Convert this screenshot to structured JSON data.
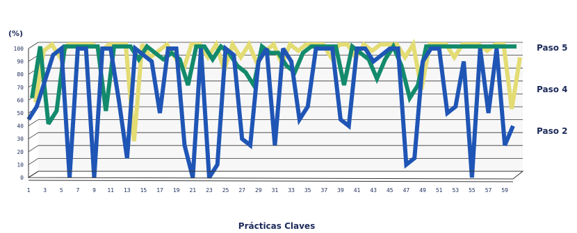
{
  "chart_data": {
    "type": "line",
    "title": "",
    "unit_label": "(%)",
    "xlabel": "Prácticas Claves",
    "ylabel": "",
    "ylim": [
      0,
      100
    ],
    "y_ticks": [
      0,
      10,
      20,
      30,
      40,
      50,
      60,
      70,
      80,
      90,
      100
    ],
    "x_tick_labels": [
      "1",
      "3",
      "5",
      "7",
      "9",
      "11",
      "13",
      "15",
      "17",
      "19",
      "21",
      "23",
      "25",
      "27",
      "29",
      "31",
      "33",
      "35",
      "37",
      "39",
      "41",
      "43",
      "45",
      "47",
      "49",
      "51",
      "53",
      "55",
      "57",
      "59"
    ],
    "grid": true,
    "legend_position": "right",
    "x": [
      1,
      2,
      3,
      4,
      5,
      6,
      7,
      8,
      9,
      10,
      11,
      12,
      13,
      14,
      15,
      16,
      17,
      18,
      19,
      20,
      21,
      22,
      23,
      24,
      25,
      26,
      27,
      28,
      29,
      30,
      31,
      32,
      33,
      34,
      35,
      36,
      37,
      38,
      39,
      40,
      41,
      42,
      43,
      44,
      45,
      46,
      47,
      48,
      49,
      50,
      51,
      52,
      53,
      54,
      55,
      56,
      57,
      58,
      59,
      60
    ],
    "series": [
      {
        "name": "Paso 5",
        "color": "#e3dc73",
        "values": [
          55,
          95,
          100,
          90,
          100,
          100,
          100,
          100,
          95,
          100,
          100,
          100,
          25,
          100,
          90,
          95,
          100,
          90,
          80,
          100,
          100,
          90,
          100,
          80,
          100,
          90,
          100,
          85,
          95,
          100,
          85,
          100,
          95,
          100,
          100,
          100,
          90,
          100,
          100,
          90,
          100,
          95,
          100,
          100,
          100,
          90,
          100,
          65,
          100,
          100,
          100,
          90,
          100,
          100,
          100,
          95,
          100,
          100,
          50,
          90
        ]
      },
      {
        "name": "Paso 4",
        "color": "#138a6c",
        "values": [
          60,
          100,
          40,
          50,
          100,
          100,
          100,
          100,
          100,
          50,
          100,
          100,
          100,
          90,
          100,
          95,
          90,
          95,
          90,
          70,
          100,
          100,
          90,
          100,
          95,
          85,
          80,
          70,
          100,
          95,
          95,
          85,
          80,
          95,
          100,
          100,
          100,
          100,
          70,
          100,
          95,
          90,
          75,
          90,
          100,
          85,
          60,
          70,
          100,
          100,
          100,
          100,
          100,
          100,
          100,
          100,
          100,
          100,
          100,
          100
        ]
      },
      {
        "name": "Paso 2",
        "color": "#1f55b5",
        "values": [
          45,
          55,
          75,
          95,
          100,
          0,
          100,
          100,
          0,
          100,
          100,
          60,
          15,
          100,
          95,
          90,
          50,
          100,
          100,
          25,
          0,
          100,
          0,
          10,
          100,
          95,
          30,
          25,
          90,
          100,
          25,
          100,
          90,
          45,
          55,
          100,
          100,
          100,
          45,
          40,
          100,
          100,
          90,
          95,
          100,
          100,
          10,
          15,
          90,
          100,
          100,
          50,
          55,
          90,
          0,
          100,
          50,
          100,
          25,
          40
        ]
      }
    ]
  }
}
